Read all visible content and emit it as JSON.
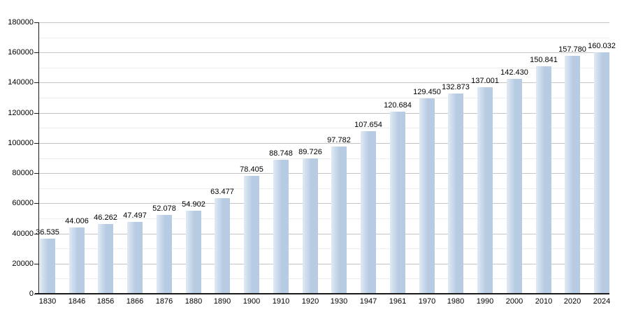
{
  "colors": {
    "background": "#ffffff",
    "bar_fill": "#b7cbe3",
    "bar_fill_light": "#e0eaf4",
    "grid_major": "#c5c5c5",
    "grid_minor": "#ededed",
    "axis": "#1a1a1a",
    "label_text": "#000000"
  },
  "chart_data": {
    "type": "bar",
    "title": "",
    "xlabel": "",
    "ylabel": "",
    "categories": [
      "1830",
      "1846",
      "1856",
      "1866",
      "1876",
      "1880",
      "1890",
      "1900",
      "1910",
      "1920",
      "1930",
      "1947",
      "1961",
      "1970",
      "1980",
      "1990",
      "2000",
      "2010",
      "2020",
      "2024"
    ],
    "values": [
      36535,
      44006,
      46262,
      47497,
      52078,
      54902,
      63477,
      78405,
      88748,
      89726,
      97782,
      107654,
      120684,
      129450,
      132873,
      137001,
      142430,
      150841,
      157780,
      160032
    ],
    "bar_labels": [
      "36.535",
      "44.006",
      "46.262",
      "47.497",
      "52.078",
      "54.902",
      "63.477",
      "78.405",
      "88.748",
      "89.726",
      "97.782",
      "107.654",
      "120.684",
      "129.450",
      "132.873",
      "137.001",
      "142.430",
      "150.841",
      "157.780",
      "160.032"
    ],
    "ylim": [
      0,
      180000
    ],
    "y_major_step": 20000,
    "y_minor_step": 10000,
    "y_tick_labels": [
      "0",
      "20000",
      "40000",
      "60000",
      "80000",
      "100000",
      "120000",
      "140000",
      "160000",
      "180000"
    ],
    "grid": true,
    "legend_position": "none"
  }
}
